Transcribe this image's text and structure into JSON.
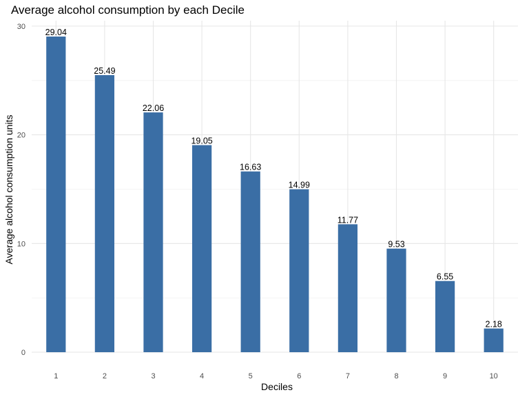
{
  "chart_data": {
    "type": "bar",
    "title": "Average alcohol consumption by each Decile",
    "xlabel": "Deciles",
    "ylabel": "Average alcohol consumption units",
    "categories": [
      "1",
      "2",
      "3",
      "4",
      "5",
      "6",
      "7",
      "8",
      "9",
      "10"
    ],
    "values": [
      29.04,
      25.49,
      22.06,
      19.05,
      16.63,
      14.99,
      11.77,
      9.53,
      6.55,
      2.18
    ],
    "data_labels": [
      "29.04",
      "25.49",
      "22.06",
      "19.05",
      "16.63",
      "14.99",
      "11.77",
      "9.53",
      "6.55",
      "2.18"
    ],
    "yticks": [
      0,
      10,
      20,
      30
    ],
    "ylim": [
      0,
      30.5
    ],
    "grid": true,
    "legend": "none",
    "bar_color": "#3a6ea5"
  }
}
